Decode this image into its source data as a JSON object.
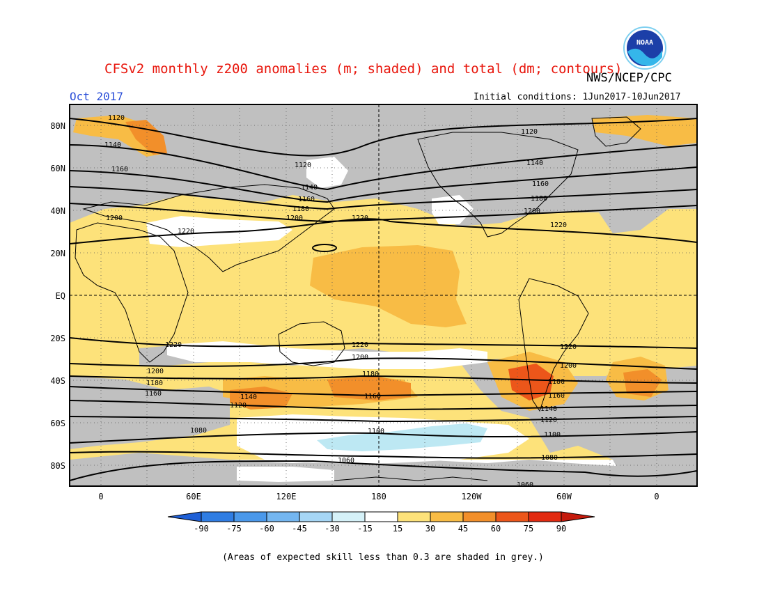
{
  "header": {
    "title": "CFSv2 monthly z200 anomalies (m; shaded) and total (dm; contours)",
    "agency": "NWS/NCEP/CPC",
    "month": "Oct 2017",
    "initial_conditions": "Initial conditions: 1Jun2017-10Jun2017",
    "logo_text": "NOAA"
  },
  "axes": {
    "lat_labels": [
      "80N",
      "60N",
      "40N",
      "20N",
      "EQ",
      "20S",
      "40S",
      "60S",
      "80S"
    ],
    "lon_labels": [
      "0",
      "60E",
      "120E",
      "180",
      "120W",
      "60W",
      "0"
    ]
  },
  "contours": {
    "labels": [
      {
        "text": "1120"
      },
      {
        "text": "1140"
      },
      {
        "text": "1160"
      },
      {
        "text": "1200"
      },
      {
        "text": "1220"
      },
      {
        "text": "1120"
      },
      {
        "text": "1140"
      },
      {
        "text": "1160"
      },
      {
        "text": "1180"
      },
      {
        "text": "1200"
      },
      {
        "text": "1220"
      },
      {
        "text": "1120"
      },
      {
        "text": "1140"
      },
      {
        "text": "1160"
      },
      {
        "text": "1180"
      },
      {
        "text": "1200"
      },
      {
        "text": "1220"
      },
      {
        "text": "1220"
      },
      {
        "text": "1200"
      },
      {
        "text": "1180"
      },
      {
        "text": "1160"
      },
      {
        "text": "1140"
      },
      {
        "text": "1120"
      },
      {
        "text": "1080"
      },
      {
        "text": "1220"
      },
      {
        "text": "1200"
      },
      {
        "text": "1180"
      },
      {
        "text": "1160"
      },
      {
        "text": "1100"
      },
      {
        "text": "1060"
      },
      {
        "text": "1220"
      },
      {
        "text": "1200"
      },
      {
        "text": "1180"
      },
      {
        "text": "1160"
      },
      {
        "text": "1140"
      },
      {
        "text": "1120"
      },
      {
        "text": "1100"
      },
      {
        "text": "1080"
      },
      {
        "text": "1060"
      }
    ]
  },
  "colorbar": {
    "ticks": [
      "-90",
      "-75",
      "-60",
      "-45",
      "-30",
      "-15",
      "15",
      "30",
      "45",
      "60",
      "75",
      "90"
    ],
    "colors": [
      "#1e5fd6",
      "#2f7de3",
      "#4a98ea",
      "#74b6f0",
      "#a6d6f5",
      "#d5f1f8",
      "#ffffff",
      "#fde27a",
      "#f8bc45",
      "#f28f2a",
      "#ec561a",
      "#e22a10",
      "#c51a0c"
    ]
  },
  "footnote": "(Areas of expected skill less than 0.3 are shaded in grey.)",
  "colors": {
    "grey_skill": "#c0c0c0",
    "anom_15_30": "#fde27a",
    "anom_30_45": "#f8bc45",
    "anom_45_60": "#f28f2a",
    "anom_60_75": "#ec561a",
    "anom_75_90": "#e22a10",
    "anom_neg_15_30": "#bde8f3",
    "title": "#e8160c",
    "month": "#2b4fd8"
  }
}
